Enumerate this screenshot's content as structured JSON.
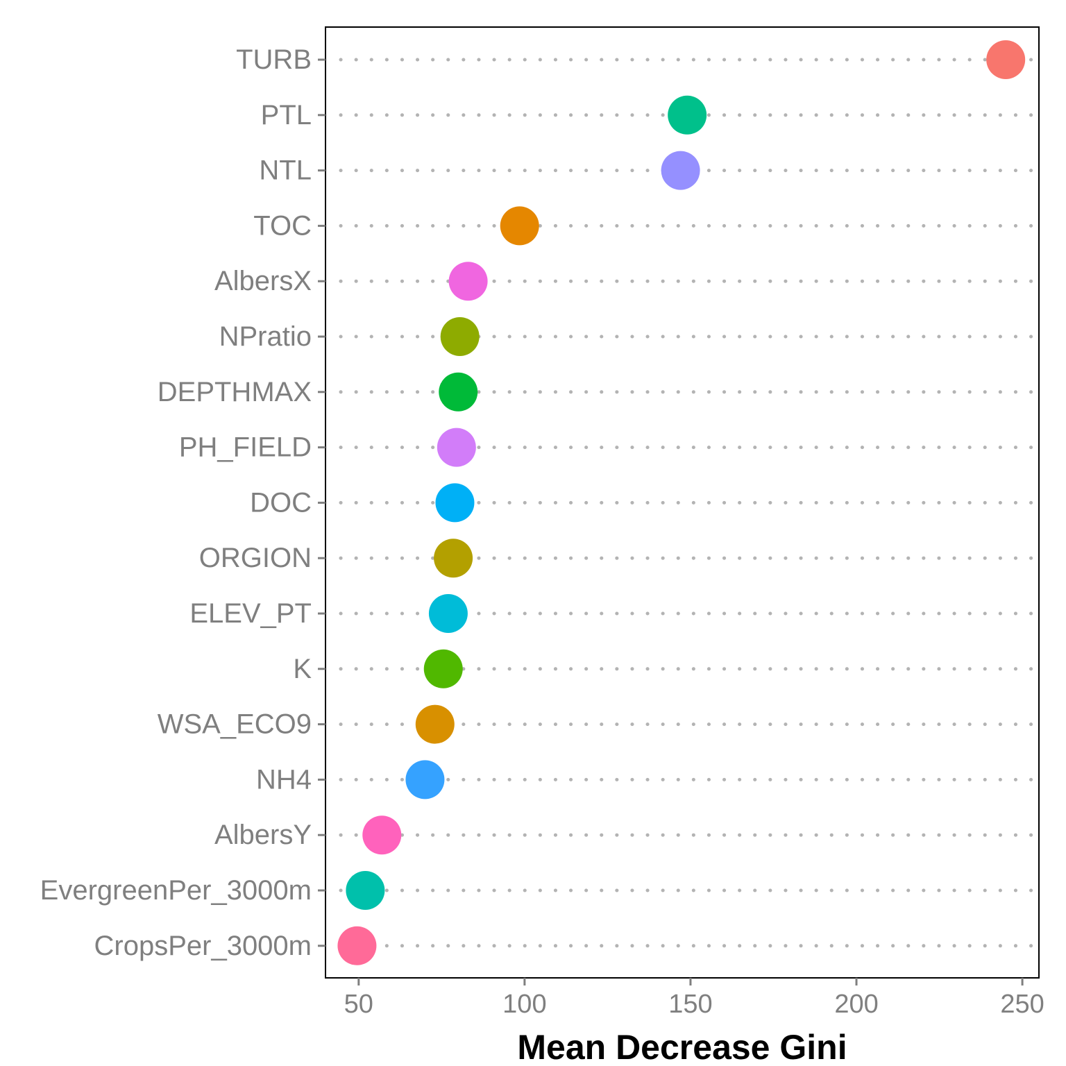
{
  "chart_data": {
    "type": "scatter",
    "title": "",
    "xlabel": "Mean Decrease Gini",
    "ylabel": "",
    "xlim": [
      40,
      255
    ],
    "xticks": [
      50,
      100,
      150,
      200,
      250
    ],
    "grid": false,
    "legend": "none",
    "points": [
      {
        "label": "TURB",
        "value": 245,
        "color": "#F8766D"
      },
      {
        "label": "PTL",
        "value": 149,
        "color": "#00C08B"
      },
      {
        "label": "NTL",
        "value": 147,
        "color": "#9590FF"
      },
      {
        "label": "TOC",
        "value": 98.5,
        "color": "#E58700"
      },
      {
        "label": "AlbersX",
        "value": 83,
        "color": "#F066E0"
      },
      {
        "label": "NPratio",
        "value": 80.5,
        "color": "#8EAB00"
      },
      {
        "label": "DEPTHMAX",
        "value": 80,
        "color": "#00BA38"
      },
      {
        "label": "PH_FIELD",
        "value": 79.5,
        "color": "#D27DF9"
      },
      {
        "label": "DOC",
        "value": 79,
        "color": "#00B0F6"
      },
      {
        "label": "ORGION",
        "value": 78.5,
        "color": "#B3A000"
      },
      {
        "label": "ELEV_PT",
        "value": 77,
        "color": "#00BCD8"
      },
      {
        "label": "K",
        "value": 75.5,
        "color": "#50B800"
      },
      {
        "label": "WSA_ECO9",
        "value": 73,
        "color": "#D89000"
      },
      {
        "label": "NH4",
        "value": 70,
        "color": "#35A2FF"
      },
      {
        "label": "AlbersY",
        "value": 57,
        "color": "#FF62BC"
      },
      {
        "label": "EvergreenPer_3000m",
        "value": 52,
        "color": "#00C0AB"
      },
      {
        "label": "CropsPer_3000m",
        "value": 49.5,
        "color": "#FF6A98"
      }
    ]
  }
}
